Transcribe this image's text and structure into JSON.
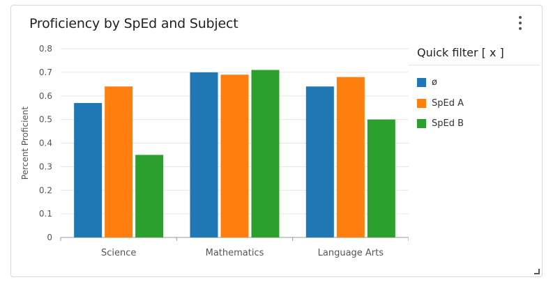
{
  "card": {
    "title": "Proficiency by SpEd and Subject",
    "menu_icon": "kebab-menu-icon"
  },
  "filter": {
    "title": "Quick filter [ x ]"
  },
  "colors": {
    "series_1": "#1f77b4",
    "series_2": "#ff7f0e",
    "series_3": "#2ca02c",
    "grid": "#e6e6e6",
    "axis": "#999999",
    "tick_text": "#555555"
  },
  "chart_data": {
    "type": "bar",
    "title": "Proficiency by SpEd and Subject",
    "xlabel": "",
    "ylabel": "Percent Proficient",
    "ylim": [
      0,
      0.8
    ],
    "yticks": [
      "0",
      "0.1",
      "0.2",
      "0.3",
      "0.4",
      "0.5",
      "0.6",
      "0.7",
      "0.8"
    ],
    "ytick_values": [
      0,
      0.1,
      0.2,
      0.3,
      0.4,
      0.5,
      0.6,
      0.7,
      0.8
    ],
    "categories": [
      "Science",
      "Mathematics",
      "Language Arts"
    ],
    "series": [
      {
        "name": "ø",
        "values": [
          0.57,
          0.7,
          0.64
        ]
      },
      {
        "name": "SpEd A",
        "values": [
          0.64,
          0.69,
          0.68
        ]
      },
      {
        "name": "SpEd B",
        "values": [
          0.35,
          0.71,
          0.5
        ]
      }
    ],
    "grid": true,
    "legend_position": "right"
  }
}
